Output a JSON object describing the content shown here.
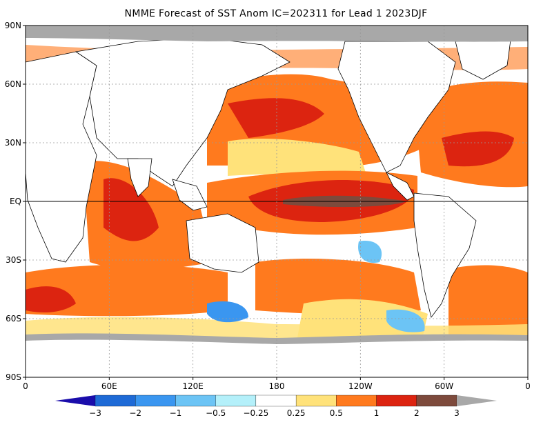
{
  "title": "NMME Forecast of SST Anom IC=202311 for Lead 1 2023DJF",
  "axes": {
    "y_ticks": [
      {
        "label": "90N",
        "lat": 90
      },
      {
        "label": "60N",
        "lat": 60
      },
      {
        "label": "30N",
        "lat": 30
      },
      {
        "label": "EQ",
        "lat": 0
      },
      {
        "label": "30S",
        "lat": -30
      },
      {
        "label": "60S",
        "lat": -60
      },
      {
        "label": "90S",
        "lat": -90
      }
    ],
    "x_ticks": [
      {
        "label": "0",
        "lon": 0
      },
      {
        "label": "60E",
        "lon": 60
      },
      {
        "label": "120E",
        "lon": 120
      },
      {
        "label": "180",
        "lon": 180
      },
      {
        "label": "120W",
        "lon": 240
      },
      {
        "label": "60W",
        "lon": 300
      },
      {
        "label": "0",
        "lon": 360
      }
    ],
    "lon_range": [
      0,
      360
    ],
    "lat_range": [
      -90,
      90
    ],
    "grid": true
  },
  "colorbar": {
    "bins": [
      {
        "color": "#1a0dab"
      },
      {
        "color": "#1e6ad6"
      },
      {
        "color": "#3a96f0"
      },
      {
        "color": "#6cc4f5"
      },
      {
        "color": "#b4f0fa"
      },
      {
        "color": "#ffffff"
      },
      {
        "color": "#ffe27a"
      },
      {
        "color": "#ff7a1e"
      },
      {
        "color": "#dc2410"
      },
      {
        "color": "#7d4a3c"
      },
      {
        "color": "#a8a8a8"
      }
    ],
    "labels": [
      "−3",
      "−2",
      "−1",
      "−0.5",
      "−0.25",
      "0.25",
      "0.5",
      "1",
      "2",
      "3"
    ]
  },
  "colors": {
    "land": "#ffffff",
    "ice": "#a8a8a8",
    "cool": "#ffe27a",
    "warm": "#ff7a1e",
    "hot": "#dc2410",
    "extreme": "#7d4a3c",
    "blue_light": "#b4f0fa",
    "blue_mid": "#6cc4f5",
    "blue": "#3a96f0"
  }
}
